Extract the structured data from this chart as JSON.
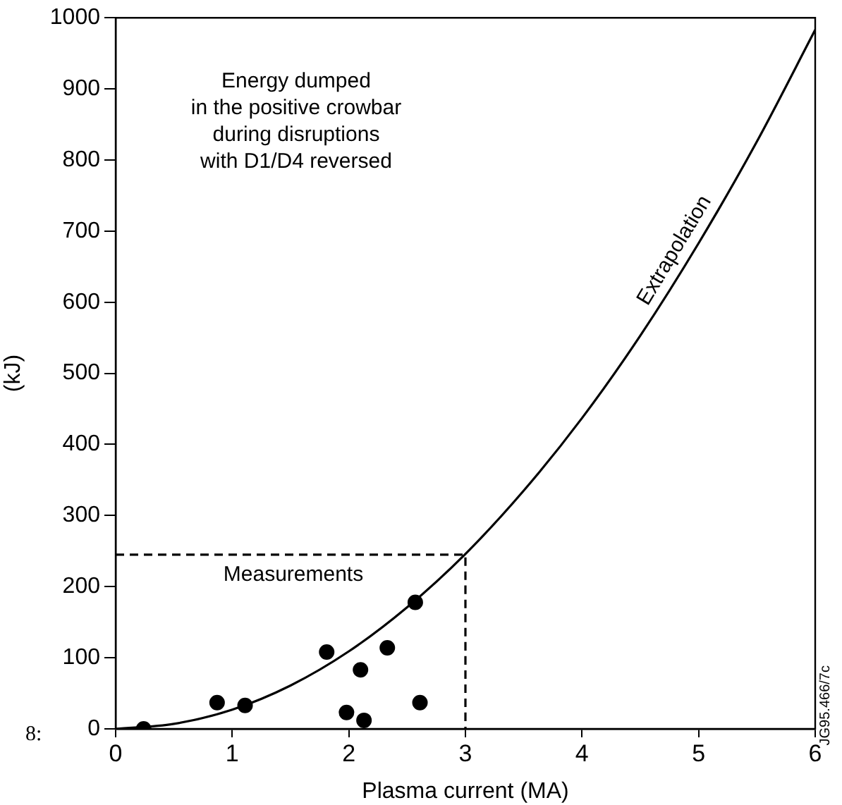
{
  "chart_data": {
    "type": "scatter",
    "xlabel": "Plasma current (MA)",
    "ylabel": "(kJ)",
    "xlim": [
      0,
      6
    ],
    "xticks": [
      0,
      1,
      2,
      3,
      4,
      5,
      6
    ],
    "ylim": [
      0,
      1000
    ],
    "yticks": [
      0,
      100,
      200,
      300,
      400,
      500,
      600,
      700,
      800,
      900,
      1000
    ],
    "grid": false,
    "legend": false,
    "series": [
      {
        "marker": "circle",
        "color": "#000000",
        "x": [
          0.24,
          0.87,
          1.11,
          1.81,
          1.98,
          2.1,
          2.13,
          2.33,
          2.57,
          2.61
        ],
        "values": [
          0,
          37,
          33,
          108,
          23,
          83,
          12,
          114,
          178,
          37
        ]
      },
      {
        "type": "line",
        "marker": "none",
        "line_style": "solid",
        "color": "#000000",
        "x": [
          0,
          0.5,
          1,
          1.5,
          2,
          2.5,
          3,
          3.5,
          4,
          4.5,
          5,
          5.5,
          6
        ],
        "values": [
          0,
          7,
          27,
          61,
          109,
          171,
          246,
          335,
          437,
          553,
          683,
          826,
          983
        ]
      },
      {
        "type": "line",
        "marker": "none",
        "line_style": "dashed",
        "color": "#000000",
        "x": [
          0,
          3,
          3
        ],
        "values": [
          245,
          245,
          0
        ]
      }
    ],
    "annotations": [
      "Energy dumped\nin the positive crowbar\nduring disruptions\nwith D1/D4 reversed",
      "Measurements",
      "Extrapolation",
      "JG95.466/7c",
      "8:"
    ]
  }
}
